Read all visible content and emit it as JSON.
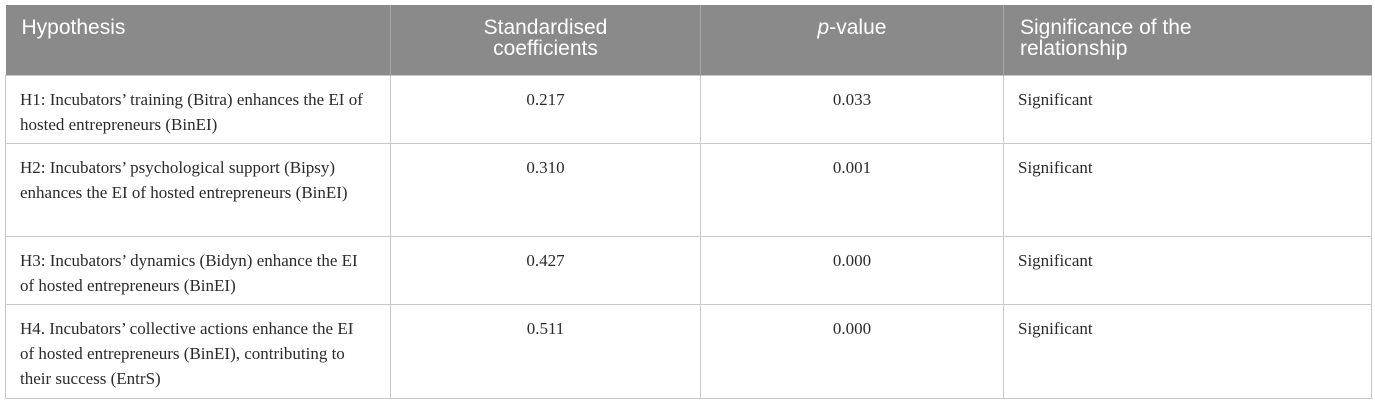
{
  "table": {
    "header": [
      "Hypothesis",
      "Standardised coefficients",
      [
        "p",
        "-value"
      ],
      "Significance of the relationship"
    ],
    "rows": [
      [
        "H1: Incubators’ training (Bitra) enhances the EI of hosted entrepreneurs (BinEI)",
        "0.217",
        "0.033",
        "Significant"
      ],
      [
        "H2: Incubators’ psychological support (Bipsy) enhances the EI of hosted entrepreneurs (BinEI)",
        "0.310",
        "0.001",
        "Significant"
      ],
      [
        "H3: Incubators’ dynamics (Bidyn) enhance the EI of hosted entrepreneurs (BinEI)",
        "0.427",
        "0.000",
        "Significant"
      ],
      [
        "H4. Incubators’ collective actions enhance the EI of hosted entrepreneurs (BinEI), contributing to their success (EntrS)",
        "0.511",
        "0.000",
        "Significant"
      ]
    ]
  }
}
